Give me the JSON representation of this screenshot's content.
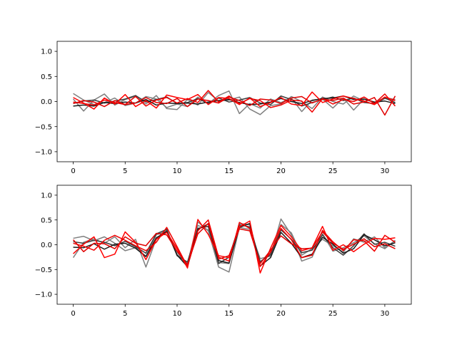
{
  "chart_data": [
    {
      "type": "line",
      "title": "",
      "xlabel": "",
      "ylabel": "",
      "xlim": [
        -1.55,
        32.55
      ],
      "ylim": [
        -1.2,
        1.2
      ],
      "xticks": [
        0,
        5,
        10,
        15,
        20,
        25,
        30
      ],
      "xtick_labels": [
        "0",
        "5",
        "10",
        "15",
        "20",
        "25",
        "30"
      ],
      "yticks": [
        -1.0,
        -0.5,
        0.0,
        0.5,
        1.0
      ],
      "ytick_labels": [
        "−1.0",
        "−0.5",
        "0.0",
        "0.5",
        "1.0"
      ],
      "grid": false,
      "x": [
        0,
        1,
        2,
        3,
        4,
        5,
        6,
        7,
        8,
        9,
        10,
        11,
        12,
        13,
        14,
        15,
        16,
        17,
        18,
        19,
        20,
        21,
        22,
        23,
        24,
        25,
        26,
        27,
        28,
        29,
        30,
        31
      ],
      "series": [
        {
          "color": "#808080",
          "values": [
            0.16,
            0.03,
            -0.06,
            -0.02,
            0.07,
            -0.08,
            -0.03,
            0.1,
            0.05,
            -0.12,
            -0.05,
            -0.1,
            0.09,
            -0.04,
            0.12,
            0.21,
            -0.24,
            -0.04,
            -0.13,
            0.05,
            -0.02,
            0.07,
            -0.2,
            0.03,
            0.05,
            -0.13,
            0.07,
            -0.17,
            0.05,
            -0.02,
            0.08,
            0.04
          ]
        },
        {
          "color": "#7f7f7f",
          "values": [
            0.05,
            -0.19,
            0.03,
            0.15,
            -0.07,
            0.04,
            0.1,
            -0.05,
            0.12,
            -0.14,
            -0.16,
            0.04,
            -0.07,
            0.18,
            0.01,
            0.03,
            0.09,
            -0.15,
            -0.26,
            -0.08,
            -0.05,
            0.1,
            0.0,
            -0.14,
            0.09,
            0.0,
            -0.05,
            0.11,
            0.01,
            -0.06,
            0.06,
            0.02
          ]
        },
        {
          "color": "#3c3c3c",
          "values": [
            -0.04,
            0.01,
            0.03,
            -0.03,
            0.01,
            0.05,
            0.12,
            -0.01,
            0.04,
            0.09,
            -0.04,
            -0.02,
            0.06,
            -0.04,
            0.07,
            -0.01,
            0.03,
            0.08,
            -0.03,
            -0.06,
            0.11,
            0.04,
            -0.09,
            -0.02,
            0.04,
            0.09,
            0.02,
            0.07,
            -0.02,
            -0.04,
            0.07,
            -0.02
          ]
        },
        {
          "color": "#1a1a1a",
          "values": [
            -0.09,
            -0.07,
            -0.09,
            -0.02,
            -0.04,
            -0.01,
            -0.03,
            0.04,
            -0.07,
            -0.03,
            -0.04,
            -0.03,
            -0.05,
            -0.01,
            0.02,
            0.04,
            -0.02,
            -0.06,
            -0.05,
            -0.01,
            0.06,
            0.0,
            -0.04,
            0.02,
            0.06,
            0.07,
            0.11,
            0.04,
            0.05,
            -0.01,
            0.01,
            -0.04
          ]
        },
        {
          "color": "#ff0000",
          "values": [
            0.08,
            -0.03,
            -0.15,
            0.07,
            -0.05,
            0.14,
            -0.1,
            0.02,
            -0.13,
            0.13,
            0.08,
            0.04,
            0.14,
            -0.06,
            0.08,
            0.06,
            -0.06,
            0.07,
            -0.1,
            -0.02,
            0.08,
            -0.05,
            -0.08,
            0.19,
            -0.02,
            0.05,
            0.11,
            0.06,
            0.01,
            -0.06,
            0.09,
            0.02
          ]
        },
        {
          "color": "#f00000",
          "values": [
            -0.01,
            -0.04,
            -0.07,
            0.03,
            -0.02,
            -0.06,
            0.1,
            -0.09,
            0.03,
            0.08,
            -0.03,
            0.06,
            -0.02,
            0.22,
            -0.01,
            0.11,
            -0.04,
            0.06,
            0.02,
            -0.12,
            -0.07,
            0.03,
            0.01,
            -0.21,
            0.06,
            -0.05,
            0.04,
            0.0,
            0.09,
            -0.04,
            0.15,
            -0.09
          ]
        },
        {
          "color": "#e00000",
          "values": [
            -0.04,
            0.02,
            -0.01,
            -0.1,
            0.02,
            -0.06,
            -0.03,
            0.08,
            -0.02,
            -0.04,
            0.06,
            -0.1,
            0.05,
            0.02,
            -0.03,
            0.09,
            0.02,
            -0.08,
            0.05,
            0.03,
            -0.04,
            0.07,
            0.1,
            -0.03,
            0.05,
            0.02,
            0.07,
            -0.05,
            -0.01,
            0.08,
            -0.27,
            0.11
          ]
        }
      ]
    },
    {
      "type": "line",
      "title": "",
      "xlabel": "",
      "ylabel": "",
      "xlim": [
        -1.55,
        32.55
      ],
      "ylim": [
        -1.2,
        1.2
      ],
      "xticks": [
        0,
        5,
        10,
        15,
        20,
        25,
        30
      ],
      "xtick_labels": [
        "0",
        "5",
        "10",
        "15",
        "20",
        "25",
        "30"
      ],
      "yticks": [
        -1.0,
        -0.5,
        0.0,
        0.5,
        1.0
      ],
      "ytick_labels": [
        "−1.0",
        "−0.5",
        "0.0",
        "0.5",
        "1.0"
      ],
      "grid": false,
      "x": [
        0,
        1,
        2,
        3,
        4,
        5,
        6,
        7,
        8,
        9,
        10,
        11,
        12,
        13,
        14,
        15,
        16,
        17,
        18,
        19,
        20,
        21,
        22,
        23,
        24,
        25,
        26,
        27,
        28,
        29,
        30,
        31
      ],
      "series": [
        {
          "color": "#808080",
          "values": [
            -0.26,
            0.05,
            0.12,
            0.03,
            0.16,
            -0.06,
            0.11,
            -0.45,
            0.12,
            0.3,
            -0.2,
            -0.38,
            0.46,
            0.28,
            -0.45,
            -0.55,
            0.35,
            0.31,
            -0.28,
            -0.23,
            0.52,
            0.2,
            -0.33,
            -0.25,
            0.22,
            -0.13,
            -0.06,
            0.04,
            0.18,
            0.02,
            -0.08,
            0.09
          ]
        },
        {
          "color": "#7f7f7f",
          "values": [
            0.13,
            0.17,
            0.08,
            0.16,
            0.03,
            -0.12,
            -0.06,
            -0.23,
            0.2,
            0.28,
            -0.15,
            -0.42,
            0.39,
            0.3,
            -0.36,
            -0.38,
            0.43,
            0.4,
            -0.35,
            -0.17,
            0.41,
            0.24,
            -0.21,
            -0.08,
            0.11,
            -0.02,
            -0.15,
            0.12,
            0.05,
            0.16,
            -0.06,
            0.08
          ]
        },
        {
          "color": "#3c3c3c",
          "values": [
            0.06,
            0.03,
            0.09,
            0.05,
            -0.02,
            0.07,
            -0.04,
            -0.17,
            0.22,
            0.31,
            -0.22,
            -0.35,
            0.33,
            0.37,
            -0.38,
            -0.25,
            0.4,
            0.36,
            -0.34,
            -0.2,
            0.3,
            0.11,
            -0.16,
            -0.11,
            0.2,
            -0.06,
            -0.21,
            -0.02,
            0.22,
            0.01,
            0.05,
            -0.03
          ]
        },
        {
          "color": "#1a1a1a",
          "values": [
            -0.05,
            -0.06,
            0.02,
            -0.09,
            0.01,
            0.03,
            -0.07,
            -0.24,
            0.14,
            0.27,
            -0.21,
            -0.44,
            0.31,
            0.42,
            -0.32,
            -0.37,
            0.35,
            0.43,
            -0.43,
            -0.26,
            0.25,
            0.03,
            -0.26,
            -0.19,
            0.15,
            0.01,
            -0.17,
            -0.08,
            0.2,
            0.1,
            -0.02,
            0.04
          ]
        },
        {
          "color": "#ff0000",
          "values": [
            -0.18,
            0.01,
            0.16,
            -0.26,
            -0.19,
            0.26,
            0.05,
            -0.3,
            0.11,
            0.25,
            -0.08,
            -0.47,
            0.51,
            0.21,
            -0.22,
            -0.26,
            0.36,
            0.48,
            -0.57,
            -0.07,
            0.39,
            0.16,
            -0.12,
            -0.06,
            0.37,
            -0.11,
            0.0,
            -0.14,
            0.01,
            0.13,
            0.11,
            0.14
          ]
        },
        {
          "color": "#f00000",
          "values": [
            0.03,
            -0.03,
            -0.11,
            0.09,
            0.19,
            0.09,
            -0.02,
            -0.12,
            0.05,
            0.35,
            -0.04,
            -0.44,
            0.28,
            0.5,
            -0.25,
            -0.33,
            0.45,
            0.33,
            -0.44,
            -0.15,
            0.33,
            0.1,
            -0.26,
            -0.21,
            0.29,
            0.06,
            -0.12,
            0.1,
            0.08,
            -0.13,
            0.19,
            0.05
          ]
        },
        {
          "color": "#e00000",
          "values": [
            0.1,
            -0.14,
            0.03,
            0.02,
            -0.08,
            0.16,
            0.03,
            -0.02,
            0.23,
            0.2,
            -0.13,
            -0.4,
            0.22,
            0.43,
            -0.29,
            -0.22,
            0.32,
            0.28,
            -0.38,
            -0.11,
            0.18,
            0.02,
            -0.08,
            -0.07,
            0.26,
            0.03,
            -0.09,
            0.01,
            0.12,
            -0.04,
            0.02,
            -0.08
          ]
        }
      ]
    }
  ]
}
